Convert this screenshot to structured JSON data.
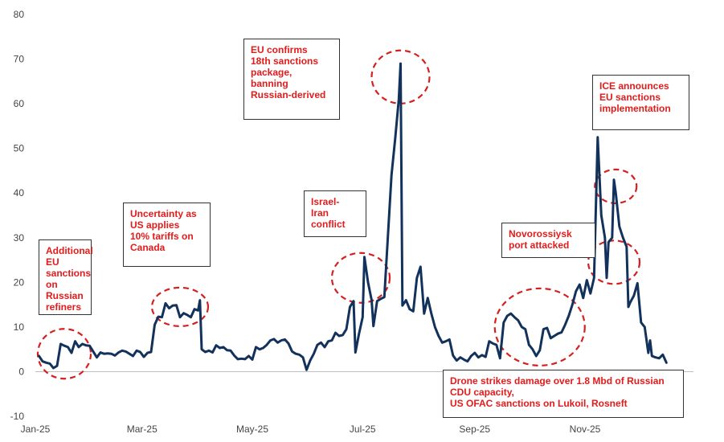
{
  "chart_data": {
    "type": "line",
    "title": "",
    "xlabel": "",
    "ylabel": "",
    "ylim": [
      -10,
      80
    ],
    "yticks": [
      -10,
      0,
      10,
      20,
      30,
      40,
      50,
      60,
      70,
      80
    ],
    "xlim": [
      "2025-01-01",
      "2025-12-31"
    ],
    "xticks": [
      {
        "date": "2025-01-01",
        "label": "Jan-25"
      },
      {
        "date": "2025-03-01",
        "label": "Mar-25"
      },
      {
        "date": "2025-05-01",
        "label": "May-25"
      },
      {
        "date": "2025-07-01",
        "label": "Jul-25"
      },
      {
        "date": "2025-09-01",
        "label": "Sep-25"
      },
      {
        "date": "2025-11-01",
        "label": "Nov-25"
      }
    ],
    "grid": false,
    "legend": "none",
    "colors": {
      "line": "#13325b",
      "annotation": "#e31b1b",
      "circle": "#d42020"
    },
    "series": [
      {
        "values": [
          [
            "2025-01-03",
            3.5
          ],
          [
            "2025-01-05",
            2.3
          ],
          [
            "2025-01-07",
            2.0
          ],
          [
            "2025-01-09",
            1.8
          ],
          [
            "2025-01-11",
            0.8
          ],
          [
            "2025-01-13",
            1.3
          ],
          [
            "2025-01-15",
            6.2
          ],
          [
            "2025-01-17",
            5.8
          ],
          [
            "2025-01-19",
            5.5
          ],
          [
            "2025-01-21",
            4.2
          ],
          [
            "2025-01-23",
            6.8
          ],
          [
            "2025-01-25",
            5.5
          ],
          [
            "2025-01-27",
            6.2
          ],
          [
            "2025-01-29",
            5.9
          ],
          [
            "2025-01-31",
            5.8
          ],
          [
            "2025-02-02",
            4.5
          ],
          [
            "2025-02-04",
            3.2
          ],
          [
            "2025-02-06",
            4.3
          ],
          [
            "2025-02-08",
            4.0
          ],
          [
            "2025-02-10",
            4.1
          ],
          [
            "2025-02-12",
            4.0
          ],
          [
            "2025-02-14",
            3.6
          ],
          [
            "2025-02-16",
            4.3
          ],
          [
            "2025-02-18",
            4.7
          ],
          [
            "2025-02-20",
            4.5
          ],
          [
            "2025-02-22",
            4.0
          ],
          [
            "2025-02-24",
            3.5
          ],
          [
            "2025-02-26",
            4.7
          ],
          [
            "2025-02-28",
            4.4
          ],
          [
            "2025-03-02",
            3.3
          ],
          [
            "2025-03-04",
            4.2
          ],
          [
            "2025-03-06",
            4.4
          ],
          [
            "2025-03-08",
            10.5
          ],
          [
            "2025-03-10",
            12.3
          ],
          [
            "2025-03-12",
            12.2
          ],
          [
            "2025-03-14",
            15.3
          ],
          [
            "2025-03-16",
            14.2
          ],
          [
            "2025-03-18",
            14.8
          ],
          [
            "2025-03-20",
            14.9
          ],
          [
            "2025-03-22",
            12.2
          ],
          [
            "2025-03-24",
            13.1
          ],
          [
            "2025-03-26",
            12.7
          ],
          [
            "2025-03-28",
            12.2
          ],
          [
            "2025-03-30",
            14.0
          ],
          [
            "2025-04-01",
            13.7
          ],
          [
            "2025-04-02",
            16.0
          ],
          [
            "2025-04-03",
            5.0
          ],
          [
            "2025-04-05",
            4.4
          ],
          [
            "2025-04-07",
            4.7
          ],
          [
            "2025-04-09",
            4.3
          ],
          [
            "2025-04-11",
            5.9
          ],
          [
            "2025-04-13",
            5.3
          ],
          [
            "2025-04-15",
            5.5
          ],
          [
            "2025-04-17",
            4.8
          ],
          [
            "2025-04-19",
            4.7
          ],
          [
            "2025-04-21",
            3.6
          ],
          [
            "2025-04-23",
            2.8
          ],
          [
            "2025-04-25",
            2.9
          ],
          [
            "2025-04-27",
            2.8
          ],
          [
            "2025-04-29",
            3.5
          ],
          [
            "2025-05-01",
            2.7
          ],
          [
            "2025-05-03",
            5.5
          ],
          [
            "2025-05-05",
            5.0
          ],
          [
            "2025-05-07",
            5.3
          ],
          [
            "2025-05-09",
            6.0
          ],
          [
            "2025-05-11",
            7.0
          ],
          [
            "2025-05-13",
            7.3
          ],
          [
            "2025-05-15",
            6.5
          ],
          [
            "2025-05-17",
            7.0
          ],
          [
            "2025-05-19",
            7.2
          ],
          [
            "2025-05-21",
            6.3
          ],
          [
            "2025-05-23",
            4.5
          ],
          [
            "2025-05-25",
            4.0
          ],
          [
            "2025-05-27",
            3.8
          ],
          [
            "2025-05-29",
            3.2
          ],
          [
            "2025-05-31",
            0.4
          ],
          [
            "2025-06-02",
            2.5
          ],
          [
            "2025-06-04",
            4.0
          ],
          [
            "2025-06-06",
            6.0
          ],
          [
            "2025-06-08",
            6.5
          ],
          [
            "2025-06-10",
            5.5
          ],
          [
            "2025-06-12",
            6.8
          ],
          [
            "2025-06-14",
            7.0
          ],
          [
            "2025-06-16",
            8.7
          ],
          [
            "2025-06-18",
            8.0
          ],
          [
            "2025-06-20",
            8.2
          ],
          [
            "2025-06-22",
            9.5
          ],
          [
            "2025-06-24",
            14.5
          ],
          [
            "2025-06-26",
            15.8
          ],
          [
            "2025-06-27",
            4.3
          ],
          [
            "2025-06-29",
            8.5
          ],
          [
            "2025-07-01",
            12.2
          ],
          [
            "2025-07-02",
            25.7
          ],
          [
            "2025-07-04",
            20.0
          ],
          [
            "2025-07-06",
            16.0
          ],
          [
            "2025-07-07",
            10.2
          ],
          [
            "2025-07-09",
            15.8
          ],
          [
            "2025-07-11",
            16.3
          ],
          [
            "2025-07-13",
            16.7
          ],
          [
            "2025-07-15",
            30.5
          ],
          [
            "2025-07-17",
            44.0
          ],
          [
            "2025-07-19",
            52.0
          ],
          [
            "2025-07-21",
            61.0
          ],
          [
            "2025-07-22",
            69.0
          ],
          [
            "2025-07-23",
            14.8
          ],
          [
            "2025-07-25",
            16.0
          ],
          [
            "2025-07-27",
            14.0
          ],
          [
            "2025-07-29",
            13.5
          ],
          [
            "2025-07-31",
            21.0
          ],
          [
            "2025-08-02",
            23.5
          ],
          [
            "2025-08-04",
            13.0
          ],
          [
            "2025-08-06",
            16.5
          ],
          [
            "2025-08-08",
            13.0
          ],
          [
            "2025-08-10",
            10.0
          ],
          [
            "2025-08-12",
            8.0
          ],
          [
            "2025-08-14",
            6.5
          ],
          [
            "2025-08-16",
            6.8
          ],
          [
            "2025-08-18",
            7.2
          ],
          [
            "2025-08-20",
            3.6
          ],
          [
            "2025-08-22",
            2.5
          ],
          [
            "2025-08-24",
            3.2
          ],
          [
            "2025-08-26",
            2.7
          ],
          [
            "2025-08-28",
            2.3
          ],
          [
            "2025-08-30",
            3.5
          ],
          [
            "2025-09-01",
            4.2
          ],
          [
            "2025-09-03",
            3.2
          ],
          [
            "2025-09-05",
            3.7
          ],
          [
            "2025-09-07",
            3.3
          ],
          [
            "2025-09-09",
            6.8
          ],
          [
            "2025-09-11",
            6.3
          ],
          [
            "2025-09-13",
            6.0
          ],
          [
            "2025-09-15",
            3.0
          ],
          [
            "2025-09-17",
            11.0
          ],
          [
            "2025-09-19",
            12.5
          ],
          [
            "2025-09-21",
            13.0
          ],
          [
            "2025-09-23",
            12.2
          ],
          [
            "2025-09-25",
            11.5
          ],
          [
            "2025-09-27",
            10.0
          ],
          [
            "2025-09-29",
            9.5
          ],
          [
            "2025-10-01",
            6.0
          ],
          [
            "2025-10-03",
            5.0
          ],
          [
            "2025-10-05",
            3.5
          ],
          [
            "2025-10-07",
            4.8
          ],
          [
            "2025-10-09",
            9.5
          ],
          [
            "2025-10-11",
            9.8
          ],
          [
            "2025-10-13",
            7.5
          ],
          [
            "2025-10-15",
            8.0
          ],
          [
            "2025-10-17",
            8.5
          ],
          [
            "2025-10-19",
            8.8
          ],
          [
            "2025-10-21",
            10.5
          ],
          [
            "2025-10-23",
            12.5
          ],
          [
            "2025-10-25",
            15.0
          ],
          [
            "2025-10-27",
            18.0
          ],
          [
            "2025-10-29",
            19.5
          ],
          [
            "2025-10-31",
            16.5
          ],
          [
            "2025-11-02",
            20.5
          ],
          [
            "2025-11-04",
            17.5
          ],
          [
            "2025-11-06",
            21.0
          ],
          [
            "2025-11-08",
            52.5
          ],
          [
            "2025-11-10",
            35.0
          ],
          [
            "2025-11-12",
            30.0
          ],
          [
            "2025-11-13",
            21.0
          ],
          [
            "2025-11-14",
            29.0
          ],
          [
            "2025-11-16",
            30.0
          ],
          [
            "2025-11-17",
            43.0
          ],
          [
            "2025-11-18",
            40.0
          ],
          [
            "2025-11-20",
            32.5
          ],
          [
            "2025-11-22",
            30.0
          ],
          [
            "2025-11-24",
            28.0
          ],
          [
            "2025-11-25",
            14.5
          ],
          [
            "2025-11-26",
            15.5
          ],
          [
            "2025-11-28",
            17.0
          ],
          [
            "2025-11-30",
            19.8
          ],
          [
            "2025-12-02",
            11.0
          ],
          [
            "2025-12-04",
            10.0
          ],
          [
            "2025-12-06",
            4.2
          ],
          [
            "2025-12-07",
            7.0
          ],
          [
            "2025-12-08",
            3.5
          ],
          [
            "2025-12-10",
            3.2
          ],
          [
            "2025-12-12",
            3.0
          ],
          [
            "2025-12-14",
            3.8
          ],
          [
            "2025-12-16",
            2.0
          ]
        ]
      }
    ],
    "annotations": [
      {
        "id": "eu-sanctions-refiners",
        "text": "Additional\nEU\nsanctions\non Russian\nrefiners"
      },
      {
        "id": "us-tariffs",
        "text": "Uncertainty as\nUS applies\n10% tariffs on\nCanada"
      },
      {
        "id": "eu-18th-package",
        "text": "EU confirms\n18th sanctions\npackage,\nbanning\nRussian-derived"
      },
      {
        "id": "israel-iran",
        "text": "Israel-\nIran\nconflict"
      },
      {
        "id": "novorossiysk",
        "text": "Novorossiysk\nport attacked"
      },
      {
        "id": "ice-eu-sanctions",
        "text": "ICE announces\nEU sanctions\nimplementation"
      },
      {
        "id": "drone-strikes",
        "text": "Drone strikes damage over 1.8 Mbd of Russian\nCDU capacity,\nUS OFAC sanctions on Lukoil, Rosneft"
      }
    ]
  }
}
